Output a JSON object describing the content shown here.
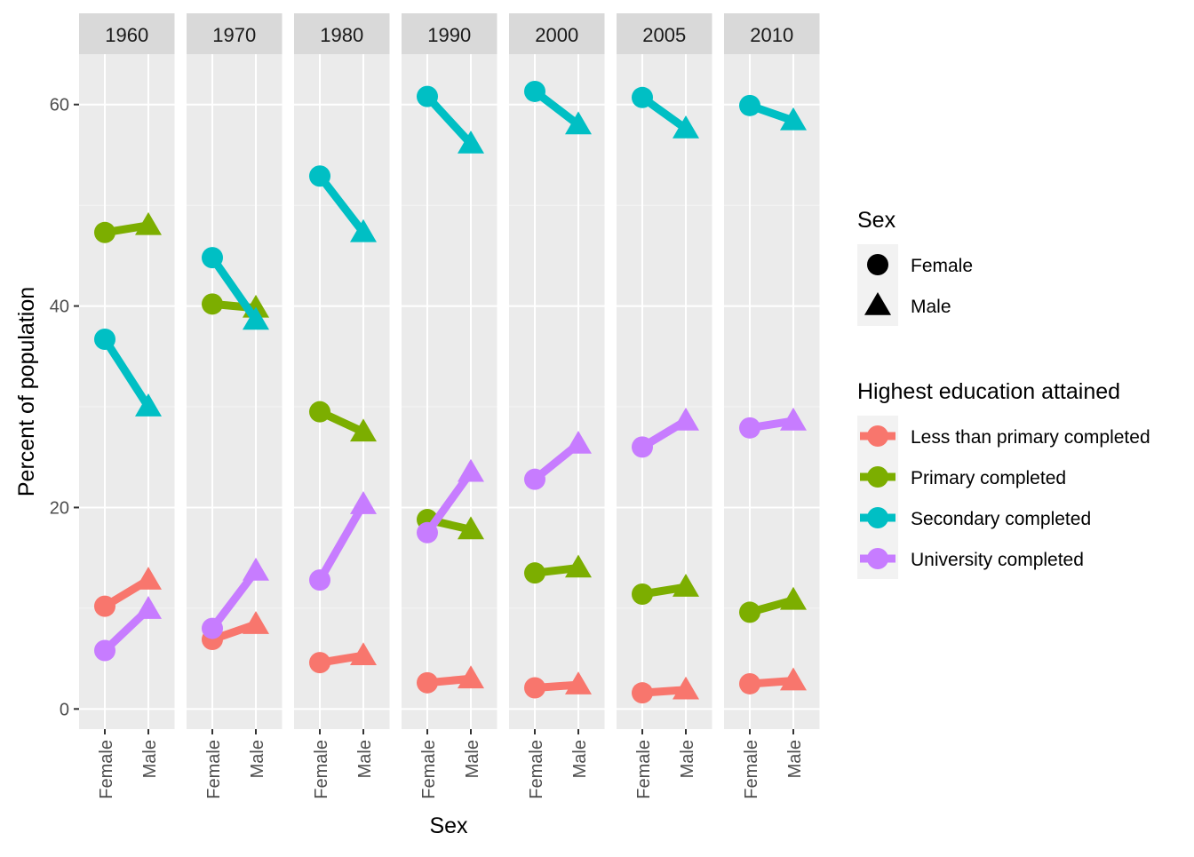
{
  "chart_data": {
    "type": "line",
    "facet_var": "year",
    "facets": [
      "1960",
      "1970",
      "1980",
      "1990",
      "2000",
      "2005",
      "2010"
    ],
    "x_categories": [
      "Female",
      "Male"
    ],
    "xlabel": "Sex",
    "ylabel": "Percent of population",
    "ylim": [
      -2,
      65
    ],
    "y_ticks": [
      0,
      20,
      40,
      60
    ],
    "grid": true,
    "legend_position": "right",
    "shape_legend": {
      "title": "Sex",
      "items": [
        {
          "label": "Female",
          "shape": "circle"
        },
        {
          "label": "Male",
          "shape": "triangle"
        }
      ]
    },
    "color_legend": {
      "title": "Highest education attained",
      "items": [
        {
          "label": "Less than primary completed",
          "color": "#F8766D"
        },
        {
          "label": "Primary completed",
          "color": "#7CAE00"
        },
        {
          "label": "Secondary completed",
          "color": "#00BFC4"
        },
        {
          "label": "University completed",
          "color": "#C77CFF"
        }
      ]
    },
    "series": [
      {
        "name": "Less than primary completed",
        "color": "#F8766D",
        "values": {
          "1960": [
            10.2,
            12.8
          ],
          "1970": [
            6.9,
            8.4
          ],
          "1980": [
            4.6,
            5.3
          ],
          "1990": [
            2.6,
            3.0
          ],
          "2000": [
            2.1,
            2.4
          ],
          "2005": [
            1.6,
            1.9
          ],
          "2010": [
            2.5,
            2.8
          ]
        }
      },
      {
        "name": "Primary completed",
        "color": "#7CAE00",
        "values": {
          "1960": [
            47.3,
            48.0
          ],
          "1970": [
            40.2,
            39.8
          ],
          "1980": [
            29.5,
            27.5
          ],
          "1990": [
            18.8,
            17.8
          ],
          "2000": [
            13.5,
            14.0
          ],
          "2005": [
            11.4,
            12.1
          ],
          "2010": [
            9.6,
            10.8
          ]
        }
      },
      {
        "name": "Secondary completed",
        "color": "#00BFC4",
        "values": {
          "1960": [
            36.7,
            30.0
          ],
          "1970": [
            44.8,
            38.6
          ],
          "1980": [
            52.9,
            47.3
          ],
          "1990": [
            60.8,
            56.1
          ],
          "2000": [
            61.3,
            58.0
          ],
          "2005": [
            60.7,
            57.6
          ],
          "2010": [
            59.9,
            58.4
          ]
        }
      },
      {
        "name": "University completed",
        "color": "#C77CFF",
        "values": {
          "1960": [
            5.8,
            9.9
          ],
          "1970": [
            8.0,
            13.7
          ],
          "1980": [
            12.8,
            20.3
          ],
          "1990": [
            17.5,
            23.5
          ],
          "2000": [
            22.8,
            26.3
          ],
          "2005": [
            26.0,
            28.6
          ],
          "2010": [
            27.9,
            28.6
          ]
        }
      }
    ]
  }
}
